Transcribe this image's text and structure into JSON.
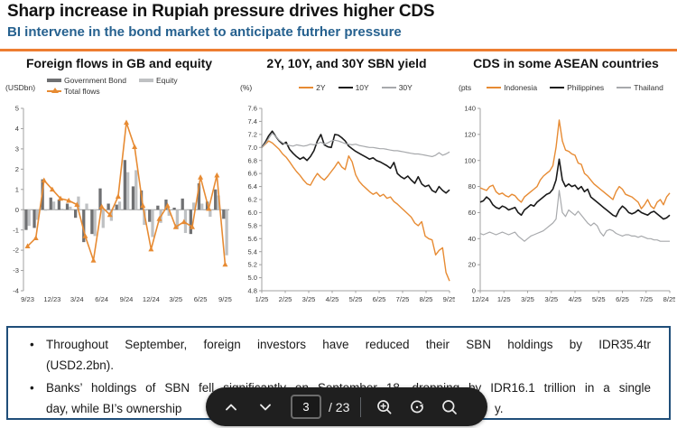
{
  "header": {
    "title": "Sharp increase in Rupiah pressure drives higher CDS",
    "subtitle": "BI intervene in the bond market to anticipate futrher pressure"
  },
  "colors": {
    "accent_orange": "#ED7D31",
    "subtitle_blue": "#26618F",
    "box_border_navy": "#1F4E79",
    "toolbar_bg": "#1F1F1F"
  },
  "chart_data": [
    {
      "type": "bar",
      "title": "Foreign flows in GB and equity",
      "unit_label": "(USDbn)",
      "categories": [
        "9/23",
        "10/23",
        "11/23",
        "12/23",
        "1/24",
        "2/24",
        "3/24",
        "4/24",
        "5/24",
        "6/24",
        "7/24",
        "8/24",
        "9/24",
        "10/24",
        "11/24",
        "12/24",
        "1/25",
        "2/25",
        "3/25",
        "4/25",
        "5/25",
        "6/25",
        "7/25",
        "8/25",
        "9/25"
      ],
      "bar_series": [
        {
          "name": "Government Bond",
          "color": "#6F7072",
          "values": [
            -1.0,
            -0.9,
            1.5,
            0.6,
            0.5,
            0.3,
            -0.4,
            -1.6,
            -1.2,
            1.05,
            0.3,
            0.25,
            2.45,
            1.15,
            0.95,
            -0.6,
            0.2,
            0.5,
            0.1,
            0.55,
            -1.2,
            1.3,
            0.4,
            1.0,
            -0.45
          ]
        },
        {
          "name": "Equity",
          "color": "#BFC1C3",
          "values": [
            -0.8,
            -0.5,
            -0.05,
            0.4,
            0.05,
            0.15,
            0.65,
            0.3,
            -1.3,
            -0.9,
            -0.55,
            0.4,
            1.85,
            1.95,
            -0.75,
            -1.35,
            -0.65,
            -0.3,
            -0.95,
            -1.15,
            0.35,
            0.3,
            -0.35,
            0.7,
            -2.25
          ]
        }
      ],
      "line_series": [
        {
          "name": "Total flows",
          "color": "#E78B33",
          "marker": "triangle",
          "values": [
            -1.8,
            -1.4,
            1.45,
            1.0,
            0.55,
            0.45,
            0.25,
            -1.3,
            -2.5,
            0.15,
            -0.25,
            0.65,
            4.3,
            3.1,
            0.2,
            -1.95,
            -0.45,
            0.2,
            -0.85,
            -0.6,
            -0.85,
            1.6,
            0.05,
            1.7,
            -2.7
          ]
        }
      ],
      "ylim": [
        -4,
        5
      ],
      "yticks": [
        "5",
        "4",
        "3",
        "2",
        "1",
        "0",
        "-1",
        "-2",
        "-3",
        "-4"
      ],
      "xtick_labels": [
        "9/23",
        "12/23",
        "3/24",
        "6/24",
        "9/24",
        "12/24",
        "3/25",
        "6/25",
        "9/25"
      ],
      "xtick_every": 3,
      "grid": false,
      "legend_position": "top"
    },
    {
      "type": "line",
      "title": "2Y, 10Y, and 30Y SBN yield",
      "unit_label": "(%)",
      "series": [
        {
          "name": "2Y",
          "color": "#E78B33",
          "w": 1.4,
          "values": [
            7.0,
            7.05,
            7.1,
            7.07,
            7.02,
            6.97,
            6.9,
            6.85,
            6.78,
            6.7,
            6.63,
            6.57,
            6.5,
            6.44,
            6.42,
            6.52,
            6.6,
            6.54,
            6.5,
            6.56,
            6.63,
            6.7,
            6.78,
            6.7,
            6.66,
            6.87,
            6.78,
            6.58,
            6.48,
            6.42,
            6.37,
            6.32,
            6.28,
            6.31,
            6.25,
            6.28,
            6.22,
            6.24,
            6.17,
            6.13,
            6.08,
            6.03,
            5.98,
            5.93,
            5.84,
            5.8,
            5.86,
            5.64,
            5.6,
            5.58,
            5.35,
            5.42,
            5.46,
            5.08,
            4.95
          ]
        },
        {
          "name": "10Y",
          "color": "#1A1A1A",
          "w": 1.6,
          "values": [
            7.0,
            7.08,
            7.18,
            7.25,
            7.17,
            7.1,
            7.05,
            7.08,
            6.97,
            6.91,
            6.86,
            6.82,
            6.85,
            6.8,
            6.86,
            6.95,
            7.1,
            7.2,
            7.04,
            7.01,
            7.0,
            7.2,
            7.19,
            7.15,
            7.1,
            7.02,
            6.98,
            6.94,
            6.91,
            6.88,
            6.85,
            6.82,
            6.84,
            6.8,
            6.78,
            6.75,
            6.72,
            6.68,
            6.77,
            6.6,
            6.55,
            6.52,
            6.56,
            6.5,
            6.45,
            6.55,
            6.44,
            6.4,
            6.42,
            6.34,
            6.31,
            6.4,
            6.34,
            6.3,
            6.35
          ]
        },
        {
          "name": "30Y",
          "color": "#A7A9AC",
          "w": 1.2,
          "values": [
            7.0,
            7.06,
            7.14,
            7.22,
            7.17,
            7.11,
            7.07,
            7.05,
            7.03,
            7.02,
            7.04,
            7.03,
            7.02,
            7.03,
            7.05,
            7.04,
            7.06,
            7.08,
            7.05,
            7.07,
            7.1,
            7.11,
            7.1,
            7.08,
            7.06,
            7.05,
            7.04,
            7.05,
            7.03,
            7.02,
            7.01,
            7.0,
            7.0,
            6.99,
            6.98,
            6.98,
            6.97,
            6.96,
            6.95,
            6.95,
            6.94,
            6.93,
            6.92,
            6.91,
            6.9,
            6.9,
            6.89,
            6.88,
            6.87,
            6.86,
            6.88,
            6.92,
            6.88,
            6.9,
            6.93
          ]
        }
      ],
      "ylim": [
        4.8,
        7.6
      ],
      "yticks": [
        "7.6",
        "7.4",
        "7.2",
        "7.0",
        "6.8",
        "6.6",
        "6.4",
        "6.2",
        "6.0",
        "5.8",
        "5.6",
        "5.4",
        "5.2",
        "5.0",
        "4.8"
      ],
      "xtick_labels": [
        "1/25",
        "2/25",
        "3/25",
        "4/25",
        "5/25",
        "6/25",
        "7/25",
        "8/25",
        "9/25"
      ],
      "grid": false,
      "legend_position": "top"
    },
    {
      "type": "line",
      "title": "CDS in some ASEAN countries",
      "unit_label": "(pts",
      "series": [
        {
          "name": "Indonesia",
          "color": "#E78B33",
          "w": 1.4,
          "values": [
            79,
            78,
            77,
            80,
            81,
            76,
            74,
            75,
            73,
            72,
            74,
            73,
            70,
            68,
            72,
            74,
            76,
            78,
            80,
            85,
            88,
            90,
            92,
            96,
            110,
            131,
            115,
            108,
            107,
            105,
            104,
            98,
            97,
            90,
            88,
            85,
            82,
            80,
            78,
            76,
            74,
            72,
            70,
            76,
            80,
            78,
            74,
            73,
            72,
            70,
            68,
            63,
            66,
            70,
            65,
            63,
            68,
            70,
            66,
            72,
            75
          ]
        },
        {
          "name": "Philippines",
          "color": "#1A1A1A",
          "w": 1.6,
          "values": [
            68,
            69,
            72,
            70,
            66,
            64,
            63,
            65,
            64,
            62,
            63,
            64,
            60,
            58,
            62,
            64,
            66,
            65,
            68,
            70,
            72,
            74,
            75,
            78,
            85,
            101,
            85,
            80,
            82,
            80,
            81,
            78,
            80,
            76,
            78,
            72,
            70,
            68,
            66,
            64,
            62,
            60,
            58,
            57,
            62,
            65,
            63,
            60,
            59,
            60,
            62,
            60,
            59,
            58,
            60,
            61,
            59,
            57,
            55,
            56,
            58
          ]
        },
        {
          "name": "Thailand",
          "color": "#A7A9AC",
          "w": 1.2,
          "values": [
            44,
            43,
            44,
            45,
            44,
            43,
            44,
            45,
            44,
            43,
            44,
            45,
            42,
            40,
            38,
            40,
            42,
            43,
            44,
            45,
            46,
            48,
            50,
            52,
            55,
            77,
            60,
            57,
            62,
            60,
            58,
            61,
            58,
            55,
            52,
            50,
            52,
            50,
            45,
            42,
            46,
            47,
            46,
            44,
            43,
            42,
            43,
            43,
            42,
            42,
            41,
            42,
            41,
            40,
            40,
            39,
            39,
            38,
            38,
            38,
            38
          ]
        }
      ],
      "ylim": [
        0,
        140
      ],
      "yticks": [
        "140",
        "120",
        "100",
        "80",
        "60",
        "40",
        "20",
        "0"
      ],
      "xtick_labels": [
        "12/24",
        "1/25",
        "3/25",
        "3/25",
        "4/25",
        "5/25",
        "6/25",
        "7/25",
        "8/25"
      ],
      "grid": false,
      "legend_position": "top"
    }
  ],
  "notes": {
    "bullet_marker": "•",
    "bullet1_line1": "Throughout September, foreign investors have reduced their SBN holdings by IDR35.4tr",
    "bullet1_line2": "(USD2.2bn).",
    "bullet2_line1": "Banks’ holdings of SBN fell significantly on September 18, dropping by IDR16.1 trillion in a single",
    "bullet2_line2_start": "day, while BI’s ownership",
    "bullet2_line2_end": "y."
  },
  "toolbar": {
    "page_value": "3",
    "page_total": "/ 23",
    "icons": [
      "page-up-icon",
      "page-down-icon",
      "zoom-in-icon",
      "rotate-icon",
      "search-icon"
    ]
  }
}
